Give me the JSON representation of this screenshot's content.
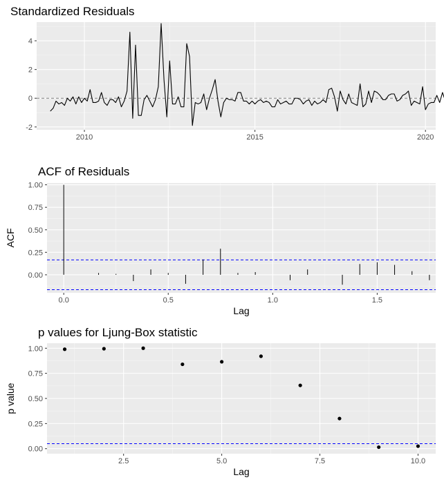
{
  "chart_data": [
    {
      "type": "line",
      "title": "Standardized Residuals",
      "xlabel": "",
      "ylabel": "",
      "xlim": [
        2008.6,
        2020.3
      ],
      "ylim": [
        -2.2,
        5.3
      ],
      "x_ticks": [
        2010,
        2015,
        2020
      ],
      "x_tick_labels": [
        "2010",
        "2015",
        "2020"
      ],
      "y_ticks": [
        -2,
        0,
        2,
        4
      ],
      "y_tick_labels": [
        "-2",
        "0",
        "2",
        "4"
      ],
      "grid": true,
      "reference_line": {
        "y": 0,
        "style": "dashed",
        "color": "#808080"
      },
      "series": [
        {
          "color": "#000000",
          "x_start": 2009.0,
          "x_step": 0.08333,
          "values": [
            -0.9,
            -0.7,
            -0.2,
            -0.4,
            -0.3,
            -0.5,
            0.0,
            -0.2,
            0.1,
            -0.4,
            0.1,
            -0.3,
            0.0,
            -0.2,
            0.6,
            -0.3,
            -0.3,
            -0.2,
            0.4,
            -0.3,
            -0.5,
            -0.1,
            -0.1,
            -0.3,
            0.1,
            -0.6,
            -0.2,
            0.5,
            4.6,
            -1.4,
            3.7,
            -1.2,
            -1.2,
            -0.1,
            0.2,
            -0.2,
            -0.6,
            -0.1,
            0.8,
            5.2,
            1.3,
            -1.3,
            2.6,
            -0.4,
            -0.4,
            0.1,
            -0.6,
            -0.6,
            3.8,
            2.9,
            -1.9,
            -0.3,
            -0.4,
            -0.3,
            0.3,
            -0.8,
            0.0,
            0.6,
            1.3,
            -0.2,
            -1.3,
            -0.3,
            0.0,
            -0.1,
            -0.1,
            -0.2,
            0.4,
            0.4,
            -0.2,
            -0.2,
            -0.4,
            -0.2,
            -0.4,
            -0.2,
            -0.1,
            -0.3,
            -0.2,
            -0.3,
            -0.6,
            -0.6,
            -0.1,
            -0.4,
            -0.3,
            -0.2,
            -0.4,
            -0.4,
            0.0,
            0.0,
            -0.1,
            -0.4,
            -0.2,
            -0.1,
            -0.5,
            -0.2,
            -0.4,
            -0.3,
            -0.1,
            -0.3,
            0.6,
            0.7,
            0.1,
            -0.9,
            0.5,
            -0.1,
            -0.4,
            0.3,
            -0.3,
            -0.4,
            -0.5,
            1.0,
            -0.6,
            -0.4,
            0.5,
            -0.3,
            0.5,
            0.4,
            0.2,
            -0.1,
            -0.1,
            0.2,
            0.3,
            0.3,
            -0.2,
            -0.1,
            0.2,
            0.3,
            0.5,
            -0.5,
            -0.2,
            -0.3,
            -0.4,
            0.8,
            -0.8,
            -0.4,
            -0.3,
            -0.3,
            0.2,
            -0.3,
            0.4,
            -0.2,
            0.6
          ]
        }
      ]
    },
    {
      "type": "bar",
      "title": "ACF of Residuals",
      "xlabel": "Lag",
      "ylabel": "ACF",
      "xlim": [
        -0.08,
        1.78
      ],
      "ylim": [
        -0.2,
        1.02
      ],
      "x_ticks": [
        0.0,
        0.5,
        1.0,
        1.5
      ],
      "x_tick_labels": [
        "0.0",
        "0.5",
        "1.0",
        "1.5"
      ],
      "y_ticks": [
        0.0,
        0.25,
        0.5,
        0.75,
        1.0
      ],
      "y_tick_labels": [
        "0.00",
        "0.25",
        "0.50",
        "0.75",
        "1.00"
      ],
      "grid": true,
      "confidence_band": {
        "upper": 0.165,
        "lower": -0.165,
        "style": "dashed",
        "color": "#0000ff"
      },
      "lags": [
        0.0,
        0.0833,
        0.1667,
        0.25,
        0.3333,
        0.4167,
        0.5,
        0.5833,
        0.6667,
        0.75,
        0.8333,
        0.9167,
        1.0,
        1.0833,
        1.1667,
        1.25,
        1.3333,
        1.4167,
        1.5,
        1.5833,
        1.6667,
        1.75
      ],
      "values": [
        1.0,
        0.0,
        0.02,
        0.01,
        -0.07,
        0.06,
        0.02,
        -0.1,
        0.17,
        0.29,
        0.02,
        0.03,
        0.0,
        -0.06,
        0.06,
        0.0,
        -0.11,
        0.12,
        0.14,
        0.11,
        0.04,
        -0.06
      ]
    },
    {
      "type": "scatter",
      "title": "p values for Ljung-Box statistic",
      "xlabel": "Lag",
      "ylabel": "p value",
      "xlim": [
        0.55,
        10.45
      ],
      "ylim": [
        -0.05,
        1.05
      ],
      "x_ticks": [
        2.5,
        5.0,
        7.5,
        10.0
      ],
      "x_tick_labels": [
        "2.5",
        "5.0",
        "7.5",
        "10.0"
      ],
      "y_ticks": [
        0.0,
        0.25,
        0.5,
        0.75,
        1.0
      ],
      "y_tick_labels": [
        "0.00",
        "0.25",
        "0.50",
        "0.75",
        "1.00"
      ],
      "grid": true,
      "reference_line": {
        "y": 0.05,
        "style": "dashed",
        "color": "#0000ff"
      },
      "x": [
        1,
        2,
        3,
        4,
        5,
        6,
        7,
        8,
        9,
        10
      ],
      "y": [
        0.99,
        0.995,
        1.0,
        0.84,
        0.865,
        0.92,
        0.63,
        0.3,
        0.015,
        0.025
      ]
    }
  ]
}
